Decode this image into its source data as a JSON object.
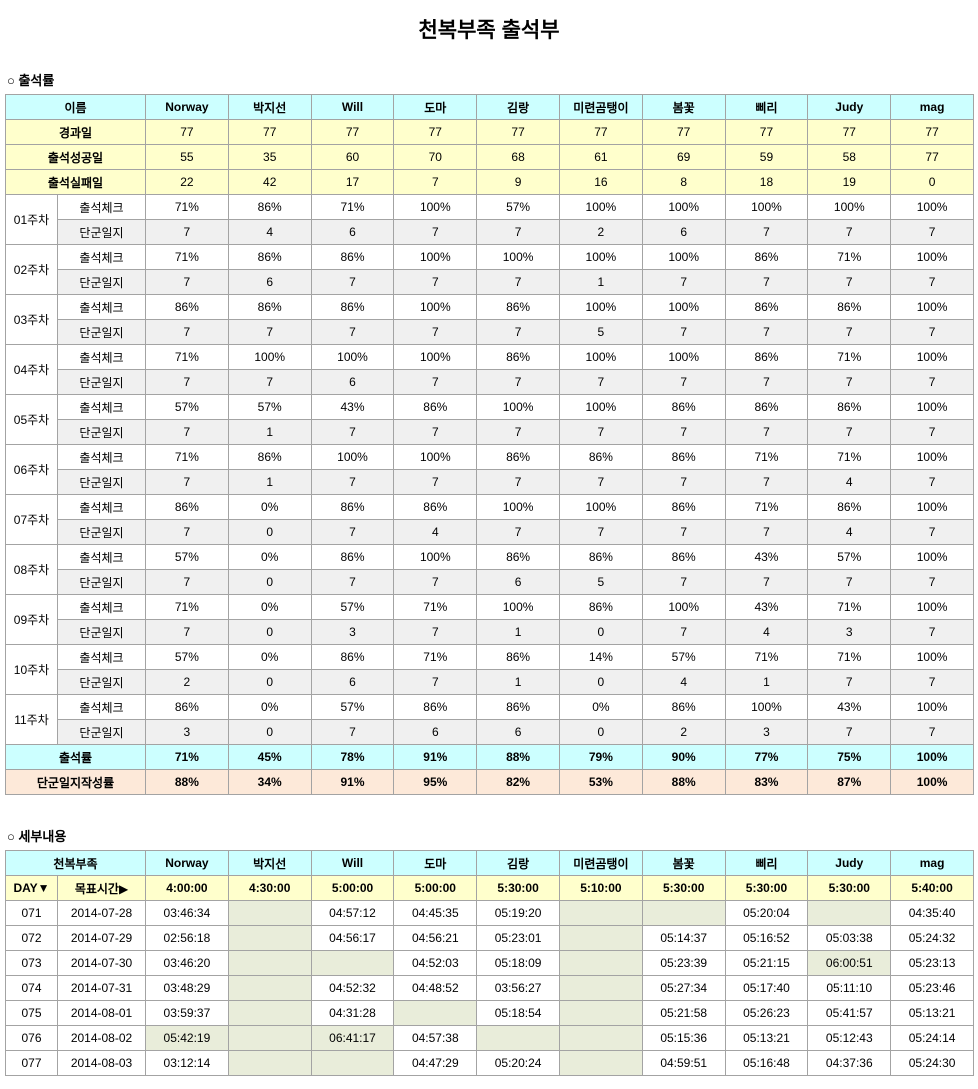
{
  "title": "천복부족 출석부",
  "colors": {
    "cyan": "#ccffff",
    "yellow": "#ffffcc",
    "gray": "#f0f0f0",
    "peach": "#fde9d9",
    "green": "#e9edda",
    "white": "#ffffff"
  },
  "members": [
    "Norway",
    "박지선",
    "Will",
    "도마",
    "김랑",
    "미련곰탱이",
    "봄꽃",
    "삐리",
    "Judy",
    "mag"
  ],
  "section1": {
    "heading": "○ 출석률",
    "name_header": "이름",
    "stat_rows": [
      {
        "label": "경과일",
        "values": [
          "77",
          "77",
          "77",
          "77",
          "77",
          "77",
          "77",
          "77",
          "77",
          "77"
        ]
      },
      {
        "label": "출석성공일",
        "values": [
          "55",
          "35",
          "60",
          "70",
          "68",
          "61",
          "69",
          "59",
          "58",
          "77"
        ]
      },
      {
        "label": "출석실패일",
        "values": [
          "22",
          "42",
          "17",
          "7",
          "9",
          "16",
          "8",
          "18",
          "19",
          "0"
        ]
      }
    ],
    "metric_labels": {
      "attendance": "출석체크",
      "journal": "단군일지"
    },
    "weeks": [
      {
        "label": "01주차",
        "attendance": [
          "71%",
          "86%",
          "71%",
          "100%",
          "57%",
          "100%",
          "100%",
          "100%",
          "100%",
          "100%"
        ],
        "journal": [
          "7",
          "4",
          "6",
          "7",
          "7",
          "2",
          "6",
          "7",
          "7",
          "7"
        ]
      },
      {
        "label": "02주차",
        "attendance": [
          "71%",
          "86%",
          "86%",
          "100%",
          "100%",
          "100%",
          "100%",
          "86%",
          "71%",
          "100%"
        ],
        "journal": [
          "7",
          "6",
          "7",
          "7",
          "7",
          "1",
          "7",
          "7",
          "7",
          "7"
        ]
      },
      {
        "label": "03주차",
        "attendance": [
          "86%",
          "86%",
          "86%",
          "100%",
          "86%",
          "100%",
          "100%",
          "86%",
          "86%",
          "100%"
        ],
        "journal": [
          "7",
          "7",
          "7",
          "7",
          "7",
          "5",
          "7",
          "7",
          "7",
          "7"
        ]
      },
      {
        "label": "04주차",
        "attendance": [
          "71%",
          "100%",
          "100%",
          "100%",
          "86%",
          "100%",
          "100%",
          "86%",
          "71%",
          "100%"
        ],
        "journal": [
          "7",
          "7",
          "6",
          "7",
          "7",
          "7",
          "7",
          "7",
          "7",
          "7"
        ]
      },
      {
        "label": "05주차",
        "attendance": [
          "57%",
          "57%",
          "43%",
          "86%",
          "100%",
          "100%",
          "86%",
          "86%",
          "86%",
          "100%"
        ],
        "journal": [
          "7",
          "1",
          "7",
          "7",
          "7",
          "7",
          "7",
          "7",
          "7",
          "7"
        ]
      },
      {
        "label": "06주차",
        "attendance": [
          "71%",
          "86%",
          "100%",
          "100%",
          "86%",
          "86%",
          "86%",
          "71%",
          "71%",
          "100%"
        ],
        "journal": [
          "7",
          "1",
          "7",
          "7",
          "7",
          "7",
          "7",
          "7",
          "4",
          "7"
        ]
      },
      {
        "label": "07주차",
        "attendance": [
          "86%",
          "0%",
          "86%",
          "86%",
          "100%",
          "100%",
          "86%",
          "71%",
          "86%",
          "100%"
        ],
        "journal": [
          "7",
          "0",
          "7",
          "4",
          "7",
          "7",
          "7",
          "7",
          "4",
          "7"
        ]
      },
      {
        "label": "08주차",
        "attendance": [
          "57%",
          "0%",
          "86%",
          "100%",
          "86%",
          "86%",
          "86%",
          "43%",
          "57%",
          "100%"
        ],
        "journal": [
          "7",
          "0",
          "7",
          "7",
          "6",
          "5",
          "7",
          "7",
          "7",
          "7"
        ]
      },
      {
        "label": "09주차",
        "attendance": [
          "71%",
          "0%",
          "57%",
          "71%",
          "100%",
          "86%",
          "100%",
          "43%",
          "71%",
          "100%"
        ],
        "journal": [
          "7",
          "0",
          "3",
          "7",
          "1",
          "0",
          "7",
          "4",
          "3",
          "7"
        ]
      },
      {
        "label": "10주차",
        "attendance": [
          "57%",
          "0%",
          "86%",
          "71%",
          "86%",
          "14%",
          "57%",
          "71%",
          "71%",
          "100%"
        ],
        "journal": [
          "2",
          "0",
          "6",
          "7",
          "1",
          "0",
          "4",
          "1",
          "7",
          "7"
        ]
      },
      {
        "label": "11주차",
        "attendance": [
          "86%",
          "0%",
          "57%",
          "86%",
          "86%",
          "0%",
          "86%",
          "100%",
          "43%",
          "100%"
        ],
        "journal": [
          "3",
          "0",
          "7",
          "6",
          "6",
          "0",
          "2",
          "3",
          "7",
          "7"
        ]
      }
    ],
    "summary_rows": [
      {
        "label": "출석률",
        "style": "cyan",
        "values": [
          "71%",
          "45%",
          "78%",
          "91%",
          "88%",
          "79%",
          "90%",
          "77%",
          "75%",
          "100%"
        ]
      },
      {
        "label": "단군일지작성률",
        "style": "peach",
        "values": [
          "88%",
          "34%",
          "91%",
          "95%",
          "82%",
          "53%",
          "88%",
          "83%",
          "87%",
          "100%"
        ]
      }
    ]
  },
  "section2": {
    "heading": "○ 세부내용",
    "group_header": "천복부족",
    "day_header": "DAY▼",
    "goal_header": "목표시간▶",
    "goal_times": [
      "4:00:00",
      "4:30:00",
      "5:00:00",
      "5:00:00",
      "5:30:00",
      "5:10:00",
      "5:30:00",
      "5:30:00",
      "5:30:00",
      "5:40:00"
    ],
    "rows": [
      {
        "day": "071",
        "date": "2014-07-28",
        "times": [
          "03:46:34",
          "",
          "04:57:12",
          "04:45:35",
          "05:19:20",
          "",
          "",
          "05:20:04",
          "",
          "04:35:40"
        ],
        "highlight": []
      },
      {
        "day": "072",
        "date": "2014-07-29",
        "times": [
          "02:56:18",
          "",
          "04:56:17",
          "04:56:21",
          "05:23:01",
          "",
          "05:14:37",
          "05:16:52",
          "05:03:38",
          "05:24:32"
        ],
        "highlight": []
      },
      {
        "day": "073",
        "date": "2014-07-30",
        "times": [
          "03:46:20",
          "",
          "",
          "04:52:03",
          "05:18:09",
          "",
          "05:23:39",
          "05:21:15",
          "06:00:51",
          "05:23:13"
        ],
        "highlight": [
          8
        ]
      },
      {
        "day": "074",
        "date": "2014-07-31",
        "times": [
          "03:48:29",
          "",
          "04:52:32",
          "04:48:52",
          "03:56:27",
          "",
          "05:27:34",
          "05:17:40",
          "05:11:10",
          "05:23:46"
        ],
        "highlight": []
      },
      {
        "day": "075",
        "date": "2014-08-01",
        "times": [
          "03:59:37",
          "",
          "04:31:28",
          "",
          "05:18:54",
          "",
          "05:21:58",
          "05:26:23",
          "05:41:57",
          "05:13:21"
        ],
        "highlight": []
      },
      {
        "day": "076",
        "date": "2014-08-02",
        "times": [
          "05:42:19",
          "",
          "06:41:17",
          "04:57:38",
          "",
          "",
          "05:15:36",
          "05:13:21",
          "05:12:43",
          "05:24:14"
        ],
        "highlight": [
          0,
          2
        ]
      },
      {
        "day": "077",
        "date": "2014-08-03",
        "times": [
          "03:12:14",
          "",
          "",
          "04:47:29",
          "05:20:24",
          "",
          "04:59:51",
          "05:16:48",
          "04:37:36",
          "05:24:30"
        ],
        "highlight": []
      }
    ]
  }
}
